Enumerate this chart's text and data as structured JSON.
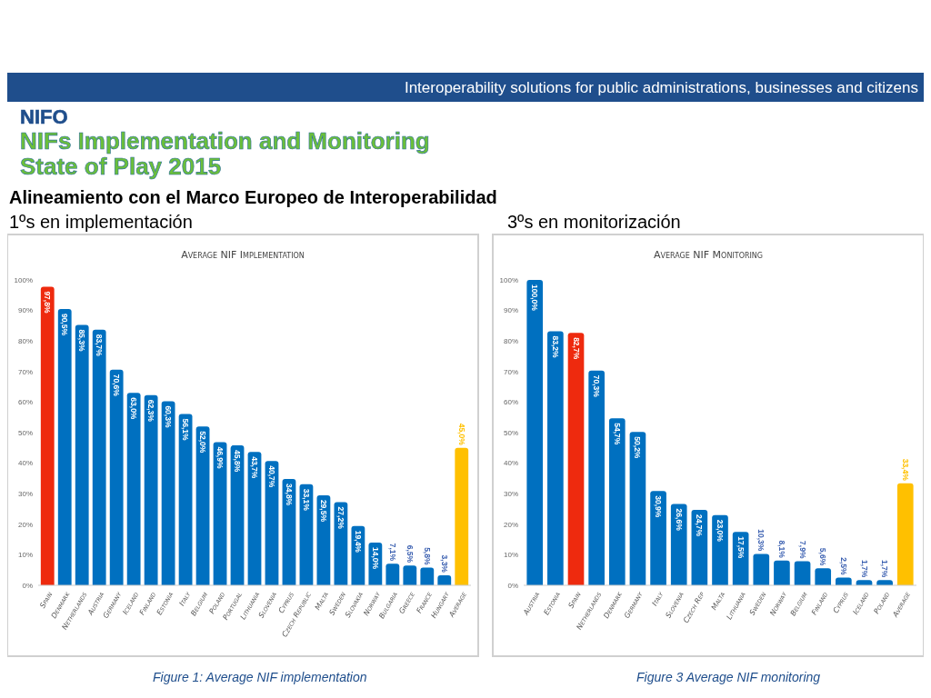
{
  "chart_data": [
    {
      "type": "bar",
      "title": "Average NIF Implementation",
      "annotations": [
        "Interoperability solutions for public administrations, businesses and citizens",
        "NIFO",
        "NIFs Implementation and Monitoring",
        "State of Play 2015",
        "Alineamiento con el Marco Europeo de Interoperabilidad",
        "1ºs en implementación",
        "Figure 1: Average NIF implementation"
      ],
      "categories": [
        "Spain",
        "Denmark",
        "Netherlands",
        "Austria",
        "Germany",
        "Iceland",
        "Finland",
        "Estonia",
        "Italy",
        "Belgium",
        "Poland",
        "Portugal",
        "Lithuania",
        "Slovenia",
        "Cyprus",
        "Czech Republic",
        "Malta",
        "Sweden",
        "Slovakia",
        "Norway",
        "Bulgaria",
        "Greece",
        "France",
        "Hungary",
        "Average"
      ],
      "values": [
        97.8,
        90.5,
        85.3,
        83.7,
        70.6,
        63.0,
        62.3,
        60.3,
        56.1,
        52.0,
        46.9,
        45.8,
        43.7,
        40.7,
        34.8,
        33.1,
        29.5,
        27.2,
        19.4,
        14.0,
        7.1,
        6.5,
        5.8,
        3.3,
        45.0
      ],
      "value_labels": [
        "97,8%",
        "90,5%",
        "85,3%",
        "83,7%",
        "70,6%",
        "63,0%",
        "62,3%",
        "60,3%",
        "56,1%",
        "52,0%",
        "46,9%",
        "45,8%",
        "43,7%",
        "40,7%",
        "34,8%",
        "33,1%",
        "29,5%",
        "27,2%",
        "19,4%",
        "14,0%",
        "7,1%",
        "6,5%",
        "5,8%",
        "3,3%",
        "45,0%"
      ],
      "colors": [
        "#ee2a0e",
        "#0070c0",
        "#0070c0",
        "#0070c0",
        "#0070c0",
        "#0070c0",
        "#0070c0",
        "#0070c0",
        "#0070c0",
        "#0070c0",
        "#0070c0",
        "#0070c0",
        "#0070c0",
        "#0070c0",
        "#0070c0",
        "#0070c0",
        "#0070c0",
        "#0070c0",
        "#0070c0",
        "#0070c0",
        "#0070c0",
        "#0070c0",
        "#0070c0",
        "#0070c0",
        "#ffc000"
      ],
      "ylim": [
        0,
        100
      ],
      "yticks": [
        {
          "value": 0,
          "label": "0%"
        },
        {
          "value": 10,
          "label": "10%"
        },
        {
          "value": 20,
          "label": "20%"
        },
        {
          "value": 30,
          "label": "30%"
        },
        {
          "value": 40,
          "label": "40%"
        },
        {
          "value": 50,
          "label": "50%"
        },
        {
          "value": 60,
          "label": "60%"
        },
        {
          "value": 70,
          "label": "70%"
        },
        {
          "value": 80,
          "label": "80%"
        },
        {
          "value": 90,
          "label": "90%"
        },
        {
          "value": 100,
          "label": "100%"
        }
      ]
    },
    {
      "type": "bar",
      "title": "Average NIF Monitoring",
      "annotations": [
        "3ºs en monitorización",
        "Figure 3 Average NIF monitoring"
      ],
      "categories": [
        "Austria",
        "Estonia",
        "Spain",
        "Netherlands",
        "Denmark",
        "Germany",
        "Italy",
        "Slovenia",
        "Czech Rep",
        "Malta",
        "Lithuania",
        "Sweden",
        "Norway",
        "Belgium",
        "Finland",
        "Cyprus",
        "Iceland",
        "Poland",
        "Average"
      ],
      "values": [
        100.0,
        83.2,
        82.7,
        70.3,
        54.7,
        50.2,
        30.9,
        26.6,
        24.7,
        23.0,
        17.5,
        10.3,
        8.1,
        7.9,
        5.6,
        2.5,
        1.7,
        1.7,
        33.4
      ],
      "value_labels": [
        "100,0%",
        "83,2%",
        "82,7%",
        "70,3%",
        "54,7%",
        "50,2%",
        "30,9%",
        "26,6%",
        "24,7%",
        "23,0%",
        "17,5%",
        "10,3%",
        "8,1%",
        "7,9%",
        "5,6%",
        "2,5%",
        "1,7%",
        "1,7%",
        "33,4%"
      ],
      "colors": [
        "#0070c0",
        "#0070c0",
        "#ee2a0e",
        "#0070c0",
        "#0070c0",
        "#0070c0",
        "#0070c0",
        "#0070c0",
        "#0070c0",
        "#0070c0",
        "#0070c0",
        "#0070c0",
        "#0070c0",
        "#0070c0",
        "#0070c0",
        "#0070c0",
        "#0070c0",
        "#0070c0",
        "#ffc000"
      ],
      "ylim": [
        0,
        100
      ],
      "yticks": [
        {
          "value": 0,
          "label": "0%"
        },
        {
          "value": 10,
          "label": "10%"
        },
        {
          "value": 20,
          "label": "20%"
        },
        {
          "value": 30,
          "label": "30%"
        },
        {
          "value": 40,
          "label": "40%"
        },
        {
          "value": 50,
          "label": "50%"
        },
        {
          "value": 60,
          "label": "60%"
        },
        {
          "value": 70,
          "label": "70%"
        },
        {
          "value": 80,
          "label": "80%"
        },
        {
          "value": 90,
          "label": "90%"
        },
        {
          "value": 100,
          "label": "100%"
        }
      ]
    }
  ]
}
